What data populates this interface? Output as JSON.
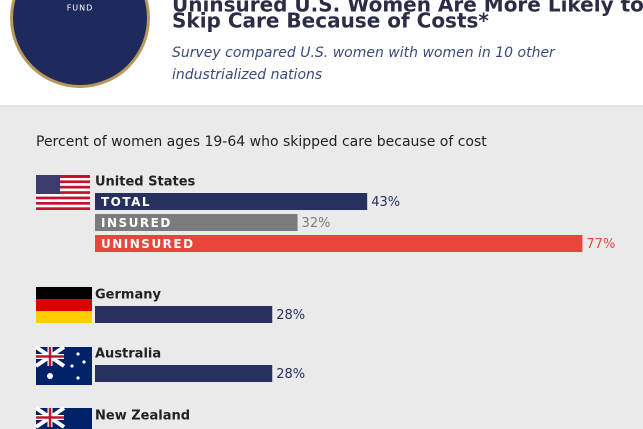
{
  "header": {
    "logo_text": "FUND",
    "title_line1": "Uninsured U.S. Women Are More Likely to",
    "title_line2": "Skip Care Because of Costs*",
    "subtitle": "Survey compared U.S. women with women in 10 other industrialized nations"
  },
  "chart_data": {
    "type": "bar",
    "title": "Percent of women ages 19-64 who skipped care because of cost",
    "groups": [
      {
        "name": "United States",
        "bars": [
          {
            "label": "TOTAL",
            "value": 43,
            "value_label": "43%",
            "color": "#27305e"
          },
          {
            "label": "INSURED",
            "value": 32,
            "value_label": "32%",
            "color": "#7b7b7d"
          },
          {
            "label": "UNINSURED",
            "value": 77,
            "value_label": "77%",
            "color": "#e8463d"
          }
        ]
      },
      {
        "name": "Germany",
        "bars": [
          {
            "value": 28,
            "value_label": "28%",
            "color": "#27305e"
          }
        ]
      },
      {
        "name": "Australia",
        "bars": [
          {
            "value": 28,
            "value_label": "28%",
            "color": "#27305e"
          }
        ]
      },
      {
        "name": "New Zealand",
        "bars": []
      }
    ]
  }
}
